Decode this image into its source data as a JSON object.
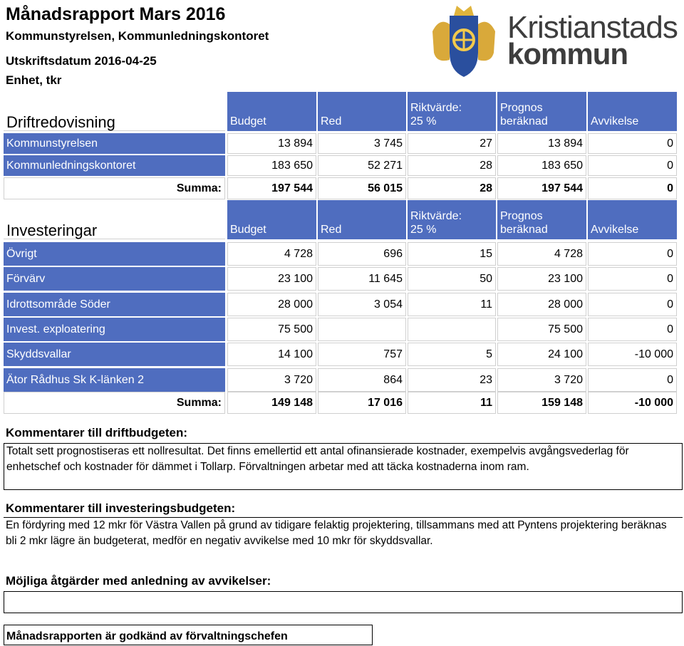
{
  "header": {
    "title": "Månadsrapport Mars 2016",
    "subtitle": "Kommunstyrelsen, Kommunledningskontoret",
    "print_date": "Utskriftsdatum 2016-04-25",
    "unit": "Enhet, tkr",
    "logo_line1": "Kristianstads",
    "logo_line2": "kommun"
  },
  "operating": {
    "title": "Driftredovisning",
    "columns": [
      "Budget",
      "Red",
      "Riktvärde:\n25 %",
      "Prognos\nberäknad",
      "Avvikelse"
    ],
    "rows": [
      {
        "label": "Kommunstyrelsen",
        "values": [
          "13 894",
          "3 745",
          "27",
          "13 894",
          "0"
        ]
      },
      {
        "label": "Kommunledningskontoret",
        "values": [
          "183 650",
          "52 271",
          "28",
          "183 650",
          "0"
        ]
      }
    ],
    "total": {
      "label": "Summa:",
      "values": [
        "197 544",
        "56 015",
        "28",
        "197 544",
        "0"
      ]
    }
  },
  "investments": {
    "title": "Investeringar",
    "columns": [
      "Budget",
      "Red",
      "Riktvärde:\n25 %",
      "Prognos\nberäknad",
      "Avvikelse"
    ],
    "rows": [
      {
        "label": "Övrigt",
        "values": [
          "4 728",
          "696",
          "15",
          "4 728",
          "0"
        ]
      },
      {
        "label": "Förvärv",
        "values": [
          "23 100",
          "11 645",
          "50",
          "23 100",
          "0"
        ]
      },
      {
        "label": "Idrottsområde Söder",
        "values": [
          "28 000",
          "3 054",
          "11",
          "28 000",
          "0"
        ]
      },
      {
        "label": "Invest. exploatering",
        "values": [
          "75 500",
          null,
          null,
          "75 500",
          "0"
        ]
      },
      {
        "label": "Skyddsvallar",
        "values": [
          "14 100",
          "757",
          "5",
          "24 100",
          "-10 000"
        ]
      },
      {
        "label": "Ätor Rådhus Sk K-länken 2",
        "values": [
          "3 720",
          "864",
          "23",
          "3 720",
          "0"
        ]
      }
    ],
    "total": {
      "label": "Summa:",
      "values": [
        "149 148",
        "17 016",
        "11",
        "159 148",
        "-10 000"
      ]
    }
  },
  "comments": {
    "operating_heading": "Kommentarer till driftbudgeten:",
    "operating_text": "Totalt sett prognostiseras ett nollresultat. Det finns emellertid ett antal ofinansierade kostnader, exempelvis avgångsvederlag för enhetschef och kostnader för dämmet i Tollarp. Förvaltningen arbetar med att täcka kostnaderna inom ram.",
    "investment_heading": "Kommentarer till investeringsbudgeten:",
    "investment_text": "En fördyring med 12 mkr för Västra Vallen på grund av tidigare felaktig projektering, tillsammans med att Pyntens projektering beräknas bli 2 mkr lägre än budgeterat, medför en negativ avvikelse med 10 mkr för skyddsvallar.",
    "actions_heading": "Möjliga åtgärder med anledning av avvikelser:",
    "approval": "Månadsrapporten är godkänd av förvaltningschefen"
  }
}
